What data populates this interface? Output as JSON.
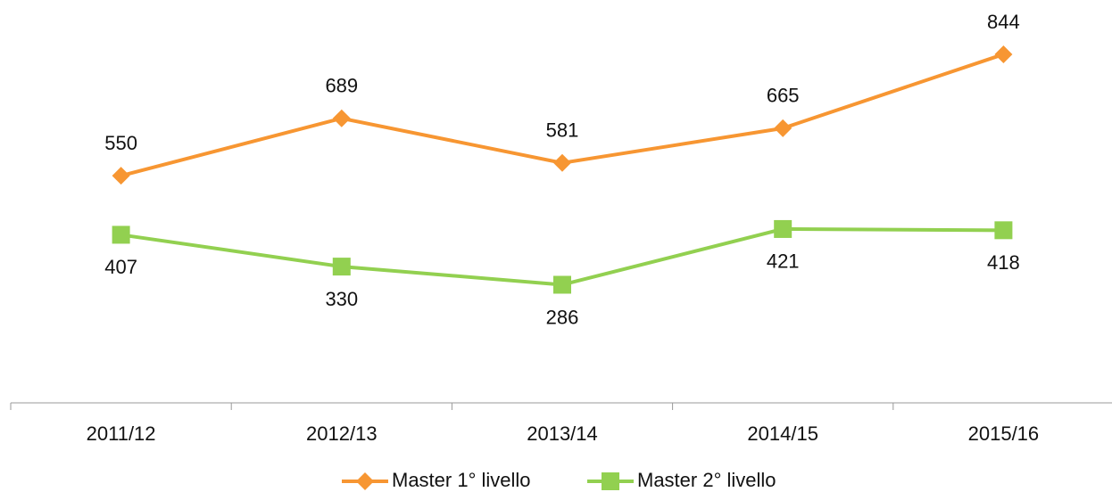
{
  "chart_data": {
    "type": "line",
    "categories": [
      "2011/12",
      "2012/13",
      "2013/14",
      "2014/15",
      "2015/16"
    ],
    "series": [
      {
        "name": "Master 1° livello",
        "color": "#f79632",
        "marker": "diamond",
        "values": [
          550,
          689,
          581,
          665,
          844
        ]
      },
      {
        "name": "Master 2° livello",
        "color": "#92d050",
        "marker": "square",
        "values": [
          407,
          330,
          286,
          421,
          418
        ]
      }
    ],
    "ylim": [
      0,
      900
    ],
    "legend": "bottom"
  }
}
